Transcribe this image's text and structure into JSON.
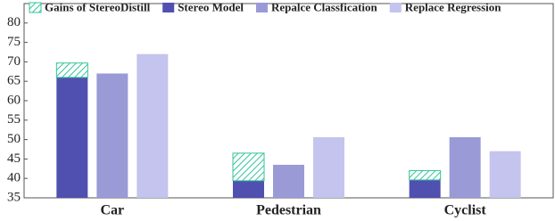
{
  "chart_data": {
    "type": "bar",
    "categories": [
      "Car",
      "Pedestrian",
      "Cyclist"
    ],
    "series": [
      {
        "name": "Gains of StereoDistill",
        "color": "#33c49a",
        "hatch": true,
        "stack": 1,
        "values": [
          3.7,
          7.1,
          2.4
        ]
      },
      {
        "name": "Stereo Model",
        "color": "#5050b0",
        "values": [
          66,
          39.4,
          39.6
        ]
      },
      {
        "name": "Repalce Classfication",
        "color": "#9a9ad6",
        "values": [
          67,
          43.5,
          50.6
        ]
      },
      {
        "name": "Replace Regression",
        "color": "#c4c4ee",
        "values": [
          72,
          50.6,
          47
        ]
      }
    ],
    "ylim": [
      35,
      85
    ],
    "yticks": [
      35,
      40,
      45,
      50,
      55,
      60,
      65,
      70,
      75,
      80
    ],
    "legend": "top"
  }
}
